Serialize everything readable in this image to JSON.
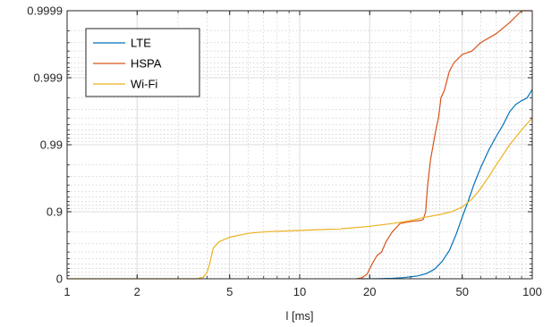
{
  "chart_data": {
    "type": "line",
    "title": "",
    "xlabel": "l [ms]",
    "ylabel": "",
    "x_scale": "log",
    "y_scale": "inverse-cdf-log (1 - p)",
    "xlim": [
      1,
      100
    ],
    "ylim": [
      0,
      0.9999
    ],
    "x_ticks": [
      1,
      2,
      5,
      10,
      20,
      50,
      100
    ],
    "x_tick_labels": [
      "1",
      "2",
      "5",
      "10",
      "20",
      "50",
      "100"
    ],
    "y_ticks": [
      0,
      0.9,
      0.99,
      0.999,
      0.9999
    ],
    "y_tick_labels": [
      "0",
      "0.9",
      "0.99",
      "0.999",
      "0.9999"
    ],
    "grid": true,
    "legend_position": "top-left",
    "series": [
      {
        "name": "LTE",
        "color": "#0072BD",
        "points": [
          [
            18.5,
            0
          ],
          [
            20,
            0.002
          ],
          [
            22,
            0.005
          ],
          [
            25,
            0.015
          ],
          [
            28,
            0.04
          ],
          [
            32,
            0.09
          ],
          [
            35,
            0.16
          ],
          [
            38,
            0.28
          ],
          [
            41,
            0.45
          ],
          [
            44,
            0.62
          ],
          [
            47,
            0.78
          ],
          [
            50,
            0.88
          ],
          [
            53,
            0.93
          ],
          [
            56,
            0.96
          ],
          [
            60,
            0.978
          ],
          [
            65,
            0.988
          ],
          [
            70,
            0.9925
          ],
          [
            75,
            0.995
          ],
          [
            80,
            0.9968
          ],
          [
            85,
            0.9975
          ],
          [
            90,
            0.9978
          ],
          [
            95,
            0.998
          ],
          [
            100,
            0.9985
          ]
        ]
      },
      {
        "name": "HSPA",
        "color": "#D95319",
        "points": [
          [
            17.5,
            0
          ],
          [
            18.5,
            0.03
          ],
          [
            19.5,
            0.15
          ],
          [
            20.5,
            0.4
          ],
          [
            21.5,
            0.55
          ],
          [
            22.5,
            0.6
          ],
          [
            23.5,
            0.72
          ],
          [
            25,
            0.8
          ],
          [
            27,
            0.85
          ],
          [
            30,
            0.86
          ],
          [
            33,
            0.865
          ],
          [
            34,
            0.87
          ],
          [
            34.8,
            0.9
          ],
          [
            35.5,
            0.96
          ],
          [
            36.5,
            0.983
          ],
          [
            37.5,
            0.99
          ],
          [
            38.5,
            0.994
          ],
          [
            39.5,
            0.996
          ],
          [
            40.5,
            0.998
          ],
          [
            42,
            0.9985
          ],
          [
            44,
            0.9992
          ],
          [
            46,
            0.9994
          ],
          [
            50,
            0.99955
          ],
          [
            55,
            0.9996
          ],
          [
            60,
            0.9997
          ],
          [
            70,
            0.99978
          ],
          [
            80,
            0.99985
          ],
          [
            90,
            0.9999
          ],
          [
            100,
            0.9999
          ]
        ]
      },
      {
        "name": "Wi-Fi",
        "color": "#EDB120",
        "points": [
          [
            1,
            0
          ],
          [
            3.6,
            0
          ],
          [
            3.85,
            0.05
          ],
          [
            4.0,
            0.2
          ],
          [
            4.1,
            0.4
          ],
          [
            4.25,
            0.65
          ],
          [
            4.5,
            0.72
          ],
          [
            5,
            0.76
          ],
          [
            6,
            0.79
          ],
          [
            7,
            0.8
          ],
          [
            10,
            0.81
          ],
          [
            15,
            0.82
          ],
          [
            20,
            0.835
          ],
          [
            25,
            0.85
          ],
          [
            30,
            0.865
          ],
          [
            35,
            0.88
          ],
          [
            40,
            0.89
          ],
          [
            45,
            0.9
          ],
          [
            50,
            0.915
          ],
          [
            55,
            0.935
          ],
          [
            60,
            0.955
          ],
          [
            65,
            0.97
          ],
          [
            70,
            0.98
          ],
          [
            80,
            0.99
          ],
          [
            90,
            0.994
          ],
          [
            100,
            0.996
          ]
        ]
      }
    ]
  }
}
